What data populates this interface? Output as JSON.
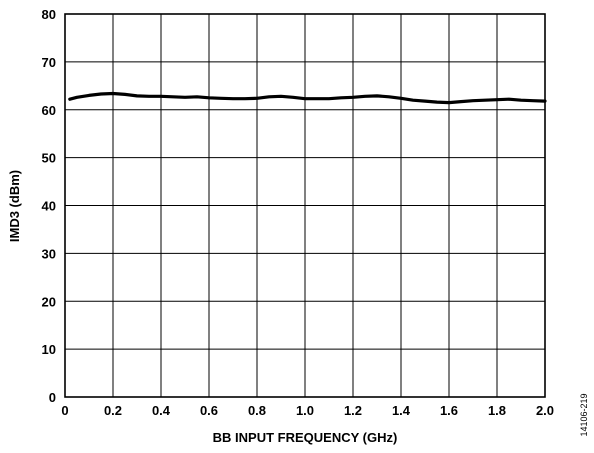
{
  "chart_data": {
    "type": "line",
    "title": "",
    "xlabel": "BB INPUT FREQUENCY (GHz)",
    "ylabel": "IMD3 (dBm)",
    "xlim": [
      0,
      2.0
    ],
    "ylim": [
      0,
      80
    ],
    "xticks": [
      "0",
      "0.2",
      "0.4",
      "0.6",
      "0.8",
      "1.0",
      "1.2",
      "1.4",
      "1.6",
      "1.8",
      "2.0"
    ],
    "yticks": [
      "0",
      "10",
      "20",
      "30",
      "40",
      "50",
      "60",
      "70",
      "80"
    ],
    "grid": true,
    "legend": "none",
    "line_color": "#000000",
    "series": [
      {
        "x": [
          0.02,
          0.05,
          0.1,
          0.15,
          0.2,
          0.25,
          0.3,
          0.35,
          0.4,
          0.45,
          0.5,
          0.55,
          0.6,
          0.65,
          0.7,
          0.75,
          0.8,
          0.85,
          0.9,
          0.95,
          1.0,
          1.05,
          1.1,
          1.15,
          1.2,
          1.25,
          1.3,
          1.35,
          1.4,
          1.45,
          1.5,
          1.55,
          1.6,
          1.65,
          1.7,
          1.75,
          1.8,
          1.85,
          1.9,
          1.95,
          2.0
        ],
        "values": [
          62.2,
          62.6,
          63.0,
          63.3,
          63.4,
          63.2,
          62.9,
          62.8,
          62.8,
          62.7,
          62.6,
          62.7,
          62.5,
          62.4,
          62.3,
          62.3,
          62.4,
          62.7,
          62.8,
          62.6,
          62.3,
          62.3,
          62.3,
          62.5,
          62.6,
          62.8,
          62.9,
          62.7,
          62.4,
          62.0,
          61.8,
          61.6,
          61.5,
          61.7,
          61.9,
          62.0,
          62.1,
          62.2,
          62.0,
          61.9,
          61.8
        ]
      }
    ]
  },
  "figure_id": "14106-219"
}
